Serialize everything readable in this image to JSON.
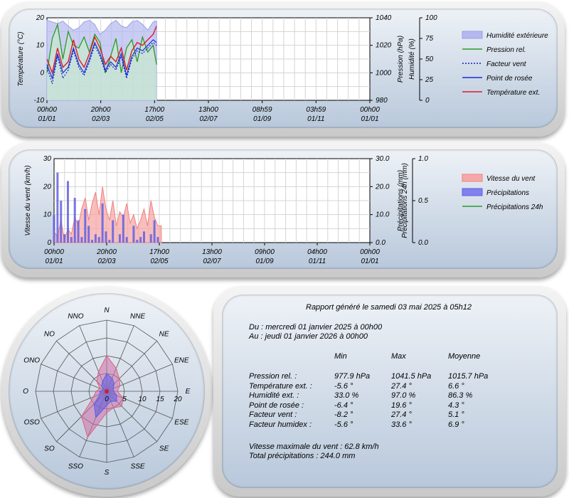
{
  "chart_data": [
    {
      "type": "line",
      "x_tick_labels": [
        [
          "00h00",
          "01/01"
        ],
        [
          "20h00",
          "02/03"
        ],
        [
          "17h00",
          "02/05"
        ],
        [
          "13h00",
          "02/07"
        ],
        [
          "08h59",
          "01/09"
        ],
        [
          "03h59",
          "01/11"
        ],
        [
          "00h00",
          "01/01"
        ]
      ],
      "y_left": {
        "label": "Température (°C)",
        "ylim": [
          -10,
          20
        ],
        "ticks": [
          "-10",
          "0",
          "10",
          "20"
        ]
      },
      "y_right1": {
        "label": "Pression (hPa)",
        "ylim": [
          980,
          1040
        ],
        "ticks": [
          "980",
          "1000",
          "1020",
          "1040"
        ]
      },
      "y_right2": {
        "label": "Humidité (%)",
        "ylim": [
          0,
          100
        ],
        "ticks": [
          "0",
          "25",
          "50",
          "75",
          "100"
        ]
      },
      "legend": [
        "Humidité extérieure",
        "Pression rel.",
        "Facteur vent",
        "Point de rosée",
        "Température ext."
      ],
      "grid": true,
      "x_days": [
        0,
        6,
        12,
        18,
        24,
        30,
        36,
        42,
        48,
        54,
        60,
        66,
        72,
        78,
        84,
        90,
        96,
        102,
        108,
        114,
        120,
        124
      ],
      "series": [
        {
          "name": "Humidité extérieure",
          "color": "#9aa0e8",
          "values": [
            97,
            95,
            93,
            96,
            90,
            85,
            88,
            95,
            97,
            92,
            80,
            85,
            93,
            97,
            90,
            88,
            95,
            97,
            92,
            85,
            95,
            96
          ]
        },
        {
          "name": "Pression rel.",
          "color": "#2a9a2a",
          "values": [
            1000,
            1025,
            1035,
            1010,
            1030,
            1020,
            1018,
            1026,
            1015,
            1028,
            1022,
            1000,
            1012,
            1025,
            1000,
            1018,
            1024,
            1008,
            1026,
            1015,
            1020,
            1006
          ]
        },
        {
          "name": "Facteur vent",
          "color": "#1a1acc",
          "values": [
            2,
            -4,
            6,
            -2,
            1,
            8,
            2,
            -1,
            4,
            10,
            6,
            0,
            3,
            1,
            6,
            -2,
            5,
            8,
            7,
            9,
            11,
            10
          ]
        },
        {
          "name": "Point de rosée",
          "color": "#1a2fd8",
          "values": [
            3,
            -2,
            7,
            0,
            2,
            9,
            3,
            0,
            5,
            11,
            7,
            1,
            4,
            2,
            7,
            -1,
            6,
            9,
            8,
            10,
            12,
            11
          ]
        },
        {
          "name": "Température ext.",
          "color": "#dd1a2a",
          "values": [
            5,
            0,
            9,
            2,
            4,
            12,
            5,
            2,
            7,
            13,
            9,
            3,
            6,
            4,
            9,
            1,
            8,
            11,
            10,
            12,
            14,
            17
          ]
        }
      ]
    },
    {
      "type": "area",
      "x_tick_labels": [
        [
          "00h00",
          "01/01"
        ],
        [
          "20h00",
          "02/03"
        ],
        [
          "17h00",
          "02/05"
        ],
        [
          "13h00",
          "02/07"
        ],
        [
          "09h00",
          "01/09"
        ],
        [
          "04h00",
          "01/11"
        ],
        [
          "00h00",
          "01/01"
        ]
      ],
      "y_left": {
        "label": "Vitesse du vent (km/h)",
        "ylim": [
          0,
          30
        ],
        "ticks": [
          "0",
          "10",
          "20",
          "30"
        ]
      },
      "y_right1": {
        "label": "Précipitations (mm)",
        "ylim": [
          0,
          30
        ],
        "ticks": [
          "0.0",
          "10.0",
          "20.0",
          "30.0"
        ]
      },
      "y_right2": {
        "label": "Précipitations 24h (mm)",
        "ylim": [
          0,
          1
        ],
        "ticks": [
          "0.0",
          "0.5",
          "1.0"
        ]
      },
      "legend": [
        "Vitesse du vent",
        "Précipitations",
        "Précipitations 24h"
      ],
      "grid": true,
      "x_days": [
        0,
        4,
        8,
        12,
        16,
        20,
        24,
        28,
        32,
        36,
        40,
        44,
        48,
        52,
        56,
        60,
        64,
        68,
        72,
        76,
        80,
        84,
        88,
        92,
        96,
        100,
        104,
        108,
        112,
        116,
        120,
        124
      ],
      "series": [
        {
          "name": "Vitesse du vent",
          "color": "#f08080",
          "values": [
            4,
            2,
            8,
            1,
            5,
            3,
            9,
            6,
            12,
            16,
            8,
            14,
            18,
            10,
            20,
            12,
            8,
            15,
            6,
            11,
            9,
            14,
            7,
            10,
            5,
            8,
            12,
            6,
            15,
            9,
            6,
            6
          ]
        },
        {
          "name": "Précipitations",
          "color": "#6060e0",
          "values": [
            10,
            25,
            15,
            3,
            22,
            2,
            16,
            8,
            2,
            12,
            6,
            1,
            3,
            2,
            14,
            4,
            1,
            8,
            0,
            3,
            10,
            2,
            0,
            6,
            1,
            2,
            4,
            0,
            3,
            8,
            2,
            0
          ]
        },
        {
          "name": "Précipitations 24h",
          "color": "#2a9a2a",
          "values": []
        }
      ]
    },
    {
      "type": "radar",
      "directions": [
        "N",
        "NNE",
        "NE",
        "ENE",
        "E",
        "ESE",
        "SE",
        "SSE",
        "S",
        "SSO",
        "SO",
        "OSO",
        "O",
        "ONO",
        "NO",
        "NNO"
      ],
      "radial_ticks": [
        "0",
        "5",
        "10",
        "15",
        "20"
      ],
      "rmax": 20,
      "series": [
        {
          "name": "max",
          "color": "#e06080",
          "values": [
            10,
            7,
            5,
            4,
            3,
            5,
            6,
            5,
            6,
            14,
            10,
            4,
            3,
            2,
            4,
            6
          ]
        },
        {
          "name": "mean",
          "color": "#6060e0",
          "values": [
            5,
            4,
            3,
            2,
            2,
            3,
            4,
            3,
            4,
            8,
            5,
            2,
            2,
            1,
            2,
            3
          ]
        }
      ]
    }
  ],
  "report": {
    "title": "Rapport généré le samedi 03 mai 2025 à 05h12",
    "from": "Du : mercredi 01 janvier 2025 à 00h00",
    "to": "Au : jeudi 01 janvier 2026 à 00h00",
    "headers": [
      "Min",
      "Max",
      "Moyenne"
    ],
    "rows": [
      {
        "label": "Pression rel. :",
        "min": "977.9 hPa",
        "max": "1041.5 hPa",
        "avg": "1015.7 hPa"
      },
      {
        "label": "Température ext. :",
        "min": "-5.6 °",
        "max": "27.4 °",
        "avg": "6.6 °"
      },
      {
        "label": "Humidité ext. :",
        "min": "33.0 %",
        "max": "97.0 %",
        "avg": "86.3 %"
      },
      {
        "label": "Point de rosée :",
        "min": "-6.4 °",
        "max": "19.6 °",
        "avg": "4.3 °"
      },
      {
        "label": "Facteur vent :",
        "min": "-8.2 °",
        "max": "27.4 °",
        "avg": "5.1 °"
      },
      {
        "label": "Facteur humidex :",
        "min": "-5.6 °",
        "max": "33.6 °",
        "avg": "6.9 °"
      }
    ],
    "wind_max": "Vitesse maximale du vent : 62.8 km/h",
    "precip_total": "Total précipitations : 244.0 mm"
  }
}
